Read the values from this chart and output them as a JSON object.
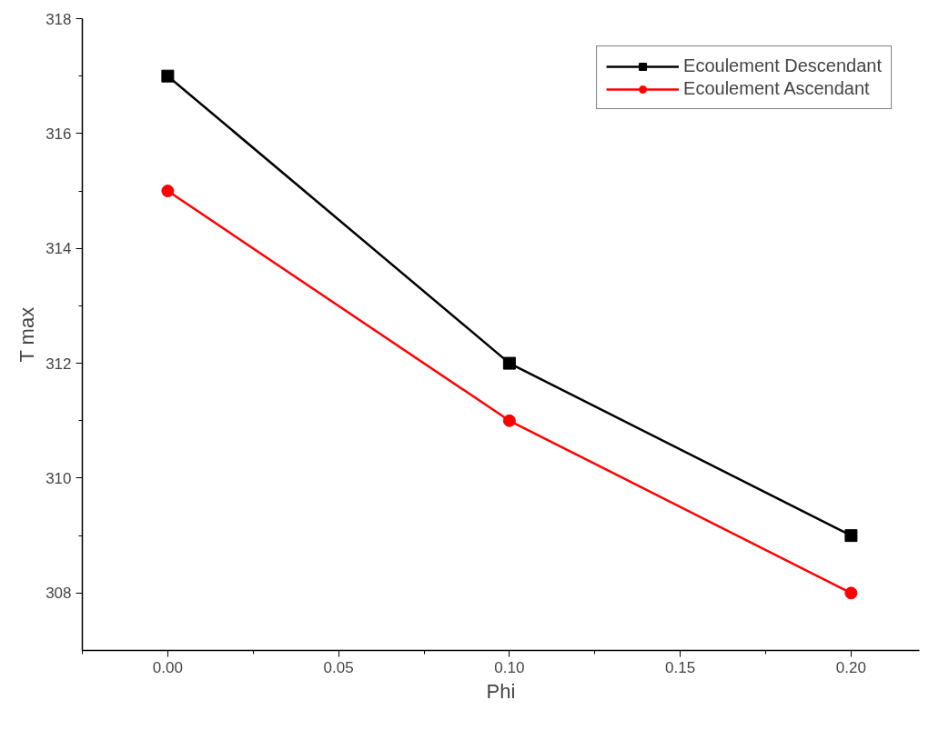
{
  "chart_data": {
    "type": "line",
    "xlabel": "Phi",
    "ylabel": "T max",
    "x": [
      0.0,
      0.1,
      0.2
    ],
    "xlim": [
      -0.025,
      0.22
    ],
    "xticks": [
      {
        "value": 0.0,
        "label": "0.00"
      },
      {
        "value": 0.05,
        "label": "0.05"
      },
      {
        "value": 0.1,
        "label": "0.10"
      },
      {
        "value": 0.15,
        "label": "0.15"
      },
      {
        "value": 0.2,
        "label": "0.20"
      }
    ],
    "ylim": [
      307,
      318
    ],
    "yticks": [
      308,
      310,
      312,
      314,
      316,
      318
    ],
    "grid": false,
    "legend": "top right",
    "line_style": "solid",
    "series": [
      {
        "name": "Ecoulement Descendant",
        "color": "#000000",
        "marker": "square",
        "values": [
          317,
          312,
          309
        ]
      },
      {
        "name": "Ecoulement Ascendant",
        "color": "#ff0000",
        "marker": "circle",
        "values": [
          315,
          311,
          308
        ]
      }
    ]
  }
}
